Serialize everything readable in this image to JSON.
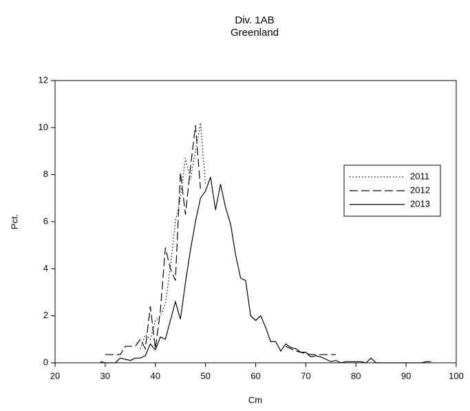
{
  "chart_data": {
    "type": "line",
    "title": "Div. 1AB",
    "subtitle": "Greenland",
    "xlabel": "Cm",
    "ylabel": "Pct.",
    "x": [
      29,
      30,
      31,
      32,
      33,
      34,
      35,
      36,
      37,
      38,
      39,
      40,
      41,
      42,
      43,
      44,
      45,
      46,
      47,
      48,
      49,
      50,
      51,
      52,
      53,
      54,
      55,
      56,
      57,
      58,
      59,
      60,
      61,
      62,
      63,
      64,
      65,
      66,
      67,
      68,
      69,
      70,
      71,
      72,
      73,
      74,
      75,
      76,
      77,
      78,
      79,
      80,
      81,
      82,
      83,
      84,
      85,
      86,
      87,
      88,
      89,
      90,
      91,
      92,
      93,
      94,
      95
    ],
    "series": [
      {
        "name": "2011",
        "color": "#000000",
        "dash": "dotted",
        "values": [
          null,
          null,
          null,
          null,
          null,
          null,
          null,
          null,
          0.6,
          1.2,
          1.0,
          1.8,
          2.0,
          2.5,
          4.1,
          6.0,
          7.0,
          8.7,
          7.8,
          9.0,
          10.2,
          7.6,
          null,
          null,
          null,
          null,
          null,
          null,
          null,
          null,
          null,
          null,
          null,
          null,
          null,
          null,
          null,
          null,
          null,
          null,
          null,
          null,
          null,
          null,
          null,
          null,
          null,
          null,
          null,
          null,
          null,
          null,
          null,
          null,
          null,
          null,
          null,
          null,
          null,
          null,
          null,
          null,
          null,
          null,
          null,
          null,
          null
        ]
      },
      {
        "name": "2012",
        "color": "#000000",
        "dash": "dashed",
        "values": [
          null,
          0.35,
          0.35,
          0.35,
          0.35,
          0.7,
          0.7,
          0.7,
          1.0,
          0.6,
          2.4,
          0.6,
          2.2,
          4.9,
          4.0,
          3.5,
          8.1,
          6.3,
          8.3,
          10.1,
          7.4,
          null,
          null,
          null,
          null,
          null,
          null,
          null,
          null,
          null,
          null,
          null,
          null,
          null,
          null,
          null,
          null,
          0.7,
          0.6,
          0.5,
          0.45,
          0.4,
          0.35,
          0.35,
          0.35,
          0.35,
          0.35,
          0.35,
          null,
          null,
          null,
          null,
          null,
          null,
          null,
          null,
          null,
          null,
          null,
          null,
          null,
          null,
          null,
          null,
          null,
          null,
          null
        ]
      },
      {
        "name": "2013",
        "color": "#000000",
        "dash": "solid",
        "values": [
          0.05,
          0,
          0,
          0,
          0.2,
          0.15,
          0.1,
          0.2,
          0.2,
          0.3,
          0.8,
          0.55,
          1.1,
          1.0,
          1.8,
          2.6,
          1.85,
          3.4,
          4.8,
          6.0,
          7.0,
          7.3,
          7.9,
          6.5,
          7.6,
          6.6,
          5.9,
          4.6,
          3.6,
          3.5,
          2.0,
          1.8,
          2.0,
          1.5,
          0.9,
          0.9,
          0.5,
          0.8,
          0.65,
          0.6,
          0.45,
          0.45,
          0.25,
          0.3,
          0.25,
          0.15,
          0.05,
          0.1,
          0,
          0.05,
          0.05,
          0.05,
          0.05,
          0,
          0.2,
          0,
          0,
          0,
          0,
          0,
          0,
          0,
          0,
          0,
          0,
          0.05,
          0.05
        ]
      }
    ],
    "xlim": [
      20,
      100
    ],
    "xticks": [
      20,
      30,
      40,
      50,
      60,
      70,
      80,
      90,
      100
    ],
    "ylim": [
      0,
      12
    ],
    "yticks": [
      0,
      2,
      4,
      6,
      8,
      10,
      12
    ],
    "legend": "right"
  }
}
